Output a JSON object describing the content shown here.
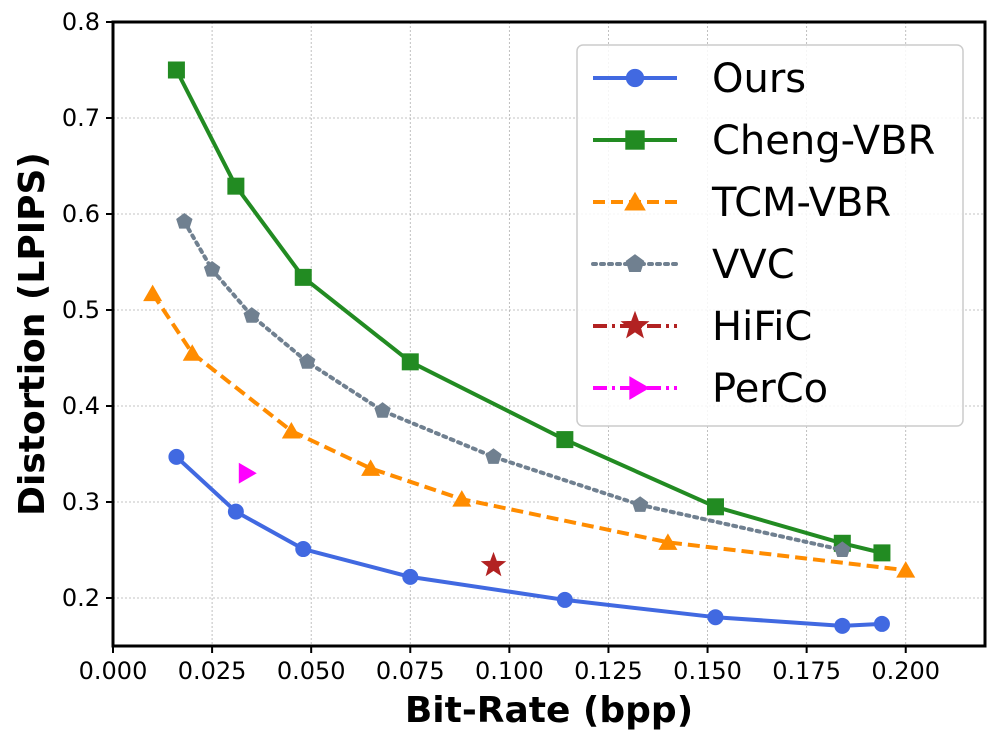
{
  "chart_data": {
    "type": "line",
    "title": "",
    "xlabel": "Bit-Rate (bpp)",
    "ylabel": "Distortion (LPIPS)",
    "xlim": [
      0.0,
      0.22
    ],
    "ylim": [
      0.15,
      0.8
    ],
    "grid": true,
    "legend_position": "top-right",
    "x_ticks": [
      0.0,
      0.025,
      0.05,
      0.075,
      0.1,
      0.125,
      0.15,
      0.175,
      0.2
    ],
    "x_tick_labels": [
      "0.000",
      "0.025",
      "0.050",
      "0.075",
      "0.100",
      "0.125",
      "0.150",
      "0.175",
      "0.200"
    ],
    "y_ticks": [
      0.2,
      0.3,
      0.4,
      0.5,
      0.6,
      0.7,
      0.8
    ],
    "y_tick_labels": [
      "0.2",
      "0.3",
      "0.4",
      "0.5",
      "0.6",
      "0.7",
      "0.8"
    ],
    "series": [
      {
        "name": "Ours",
        "color": "#4169e1",
        "line_style": "solid",
        "marker": "circle",
        "x": [
          0.016,
          0.031,
          0.048,
          0.075,
          0.114,
          0.152,
          0.184,
          0.194
        ],
        "y": [
          0.347,
          0.29,
          0.251,
          0.222,
          0.198,
          0.18,
          0.171,
          0.173
        ]
      },
      {
        "name": "Cheng-VBR",
        "color": "#228b22",
        "line_style": "solid",
        "marker": "square",
        "x": [
          0.016,
          0.031,
          0.048,
          0.075,
          0.114,
          0.152,
          0.184,
          0.194
        ],
        "y": [
          0.75,
          0.629,
          0.534,
          0.446,
          0.365,
          0.295,
          0.257,
          0.247
        ]
      },
      {
        "name": "TCM-VBR",
        "color": "#ff8c00",
        "line_style": "dashed",
        "marker": "triangle",
        "x": [
          0.01,
          0.02,
          0.045,
          0.065,
          0.088,
          0.14,
          0.2
        ],
        "y": [
          0.517,
          0.455,
          0.374,
          0.335,
          0.303,
          0.258,
          0.229
        ]
      },
      {
        "name": "VVC",
        "color": "#708090",
        "line_style": "dotted",
        "marker": "pentagon",
        "x": [
          0.018,
          0.025,
          0.035,
          0.049,
          0.068,
          0.096,
          0.133,
          0.184
        ],
        "y": [
          0.592,
          0.542,
          0.494,
          0.446,
          0.395,
          0.347,
          0.297,
          0.25
        ]
      },
      {
        "name": "HiFiC",
        "color": "#b22222",
        "line_style": "dashdot",
        "marker": "star",
        "x": [
          0.096
        ],
        "y": [
          0.234
        ]
      },
      {
        "name": "PerCo",
        "color": "#ff00ff",
        "line_style": "dashdot",
        "marker": "triangle-right",
        "x": [
          0.033
        ],
        "y": [
          0.33
        ]
      }
    ]
  }
}
